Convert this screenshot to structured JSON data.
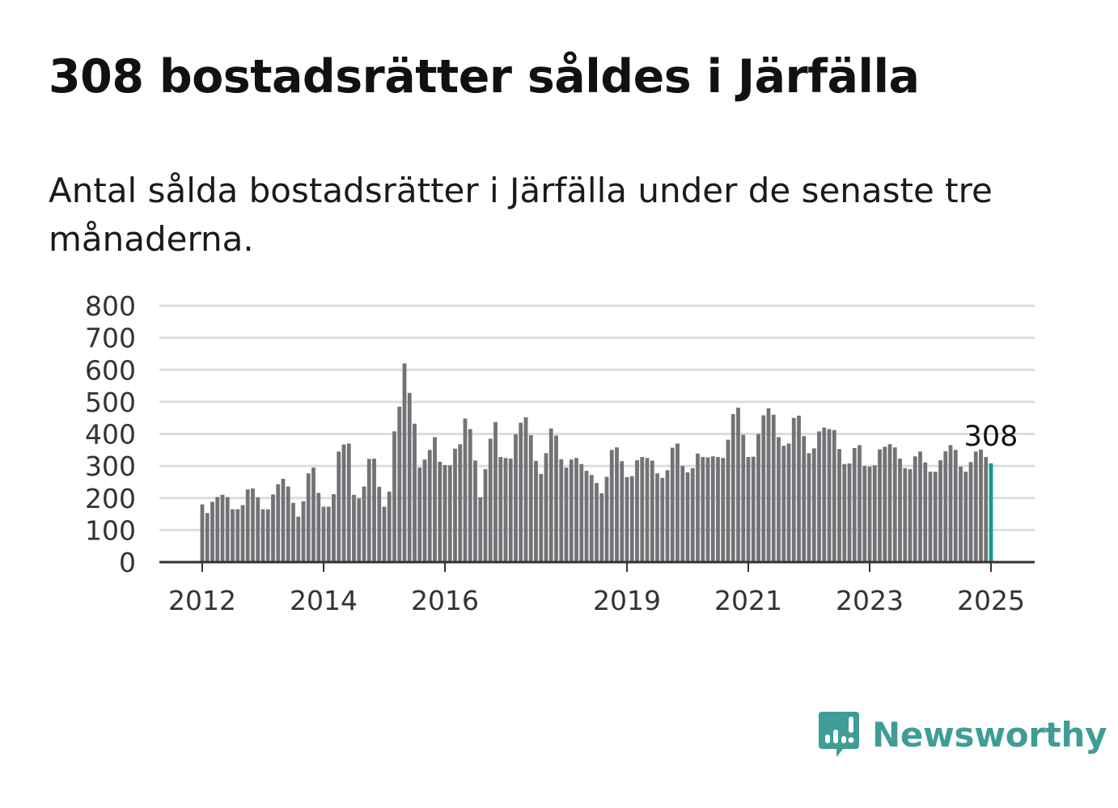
{
  "title": "308 bostadsrätter såldes i Järfälla",
  "subtitle": "Antal sålda bostadsrätter i Järfälla under de senaste tre månaderna.",
  "brand": {
    "name": "Newsworthy",
    "icon": "newsworthy-logo-icon",
    "color": "#3f9c97"
  },
  "colors": {
    "bar": "#737276",
    "highlight": "#149891",
    "grid": "#dddddd",
    "axis": "#333333"
  },
  "chart_data": {
    "type": "bar",
    "title": "308 bostadsrätter såldes i Järfälla",
    "ylim": [
      0,
      800
    ],
    "yticks": [
      "0",
      "100",
      "200",
      "300",
      "400",
      "500",
      "600",
      "700",
      "800"
    ],
    "xticks": [
      {
        "label": "2012",
        "index": 0
      },
      {
        "label": "2014",
        "index": 24
      },
      {
        "label": "2016",
        "index": 48
      },
      {
        "label": "2019",
        "index": 84
      },
      {
        "label": "2021",
        "index": 108
      },
      {
        "label": "2023",
        "index": 132
      },
      {
        "label": "2025",
        "index": 156
      }
    ],
    "grid": true,
    "x_start": "2012-01",
    "frequency": "monthly",
    "highlight_index": 156,
    "data_label": "308",
    "values": [
      180,
      153,
      188,
      203,
      210,
      203,
      165,
      165,
      178,
      227,
      230,
      202,
      165,
      165,
      211,
      243,
      260,
      236,
      185,
      142,
      190,
      277,
      295,
      216,
      173,
      173,
      212,
      345,
      367,
      370,
      210,
      199,
      236,
      322,
      323,
      235,
      173,
      220,
      408,
      485,
      620,
      528,
      432,
      295,
      320,
      350,
      390,
      313,
      303,
      302,
      354,
      368,
      448,
      415,
      317,
      202,
      290,
      385,
      437,
      328,
      325,
      323,
      399,
      435,
      452,
      396,
      316,
      275,
      340,
      417,
      395,
      321,
      295,
      320,
      325,
      306,
      285,
      272,
      247,
      215,
      266,
      350,
      358,
      315,
      265,
      268,
      318,
      328,
      325,
      317,
      277,
      263,
      287,
      357,
      370,
      300,
      280,
      293,
      339,
      328,
      327,
      330,
      328,
      325,
      382,
      462,
      482,
      397,
      328,
      329,
      400,
      458,
      480,
      460,
      390,
      363,
      370,
      450,
      457,
      393,
      340,
      355,
      408,
      420,
      415,
      412,
      353,
      306,
      308,
      356,
      365,
      300,
      298,
      302,
      352,
      360,
      368,
      358,
      323,
      293,
      290,
      330,
      345,
      311,
      282,
      282,
      318,
      346,
      365,
      350,
      298,
      282,
      312,
      345,
      351,
      328,
      308
    ]
  }
}
